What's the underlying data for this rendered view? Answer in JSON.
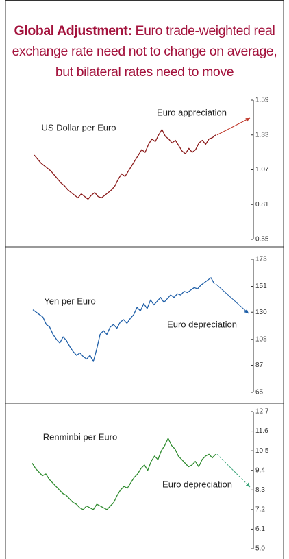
{
  "header": {
    "title_lead": "Global Adjustment:",
    "title": "Euro trade-weighted real exchange rate need not to change on average, but bilateral rates need to move"
  },
  "chart_data": [
    {
      "type": "line",
      "name": "US Dollar per Euro",
      "annotation": "Euro appreciation",
      "color": "#8b1a1a",
      "arrow_color": "#c0392b",
      "ylim": [
        0.55,
        1.59
      ],
      "yticks": [
        0.55,
        0.81,
        1.07,
        1.33,
        1.59
      ],
      "values": [
        1.18,
        1.15,
        1.12,
        1.1,
        1.08,
        1.06,
        1.03,
        1.0,
        0.97,
        0.95,
        0.92,
        0.9,
        0.88,
        0.86,
        0.89,
        0.87,
        0.85,
        0.88,
        0.9,
        0.87,
        0.86,
        0.88,
        0.9,
        0.92,
        0.95,
        1.0,
        1.04,
        1.02,
        1.06,
        1.1,
        1.14,
        1.18,
        1.22,
        1.2,
        1.26,
        1.3,
        1.28,
        1.33,
        1.37,
        1.32,
        1.3,
        1.27,
        1.29,
        1.25,
        1.21,
        1.19,
        1.23,
        1.2,
        1.22,
        1.27,
        1.29,
        1.26,
        1.3,
        1.31,
        1.33
      ]
    },
    {
      "type": "line",
      "name": "Yen per Euro",
      "annotation": "Euro depreciation",
      "color": "#1f5fa8",
      "arrow_color": "#1f5fa8",
      "ylim": [
        65,
        173
      ],
      "yticks": [
        65,
        87,
        108,
        130,
        151,
        173
      ],
      "values": [
        132,
        130,
        128,
        126,
        120,
        118,
        112,
        108,
        105,
        110,
        107,
        102,
        98,
        95,
        97,
        94,
        92,
        95,
        90,
        100,
        112,
        115,
        112,
        118,
        120,
        117,
        122,
        124,
        121,
        125,
        128,
        134,
        131,
        137,
        133,
        140,
        136,
        139,
        142,
        138,
        141,
        144,
        142,
        145,
        144,
        147,
        146,
        148,
        150,
        149,
        152,
        154,
        156,
        158,
        153
      ]
    },
    {
      "type": "line",
      "name": "Renminbi per Euro",
      "annotation": "Euro depreciation",
      "color": "#2e8b2e",
      "arrow_color": "#3aa57a",
      "ylim": [
        5.0,
        12.7
      ],
      "yticks": [
        {
          "value": 5,
          "label": "5.0"
        },
        6.1,
        7.2,
        8.3,
        9.4,
        10.5,
        11.6,
        12.7
      ],
      "values": [
        9.8,
        9.5,
        9.3,
        9.1,
        9.2,
        8.9,
        8.7,
        8.5,
        8.3,
        8.1,
        8.0,
        7.8,
        7.6,
        7.5,
        7.3,
        7.2,
        7.4,
        7.3,
        7.2,
        7.5,
        7.4,
        7.3,
        7.2,
        7.4,
        7.6,
        8.0,
        8.3,
        8.5,
        8.4,
        8.7,
        9.0,
        9.2,
        9.5,
        9.7,
        9.4,
        9.9,
        10.2,
        10.0,
        10.5,
        10.8,
        11.2,
        10.8,
        10.6,
        10.2,
        10.0,
        9.8,
        9.6,
        9.7,
        9.9,
        9.6,
        10.0,
        10.2,
        10.3,
        10.1,
        10.3
      ]
    }
  ]
}
